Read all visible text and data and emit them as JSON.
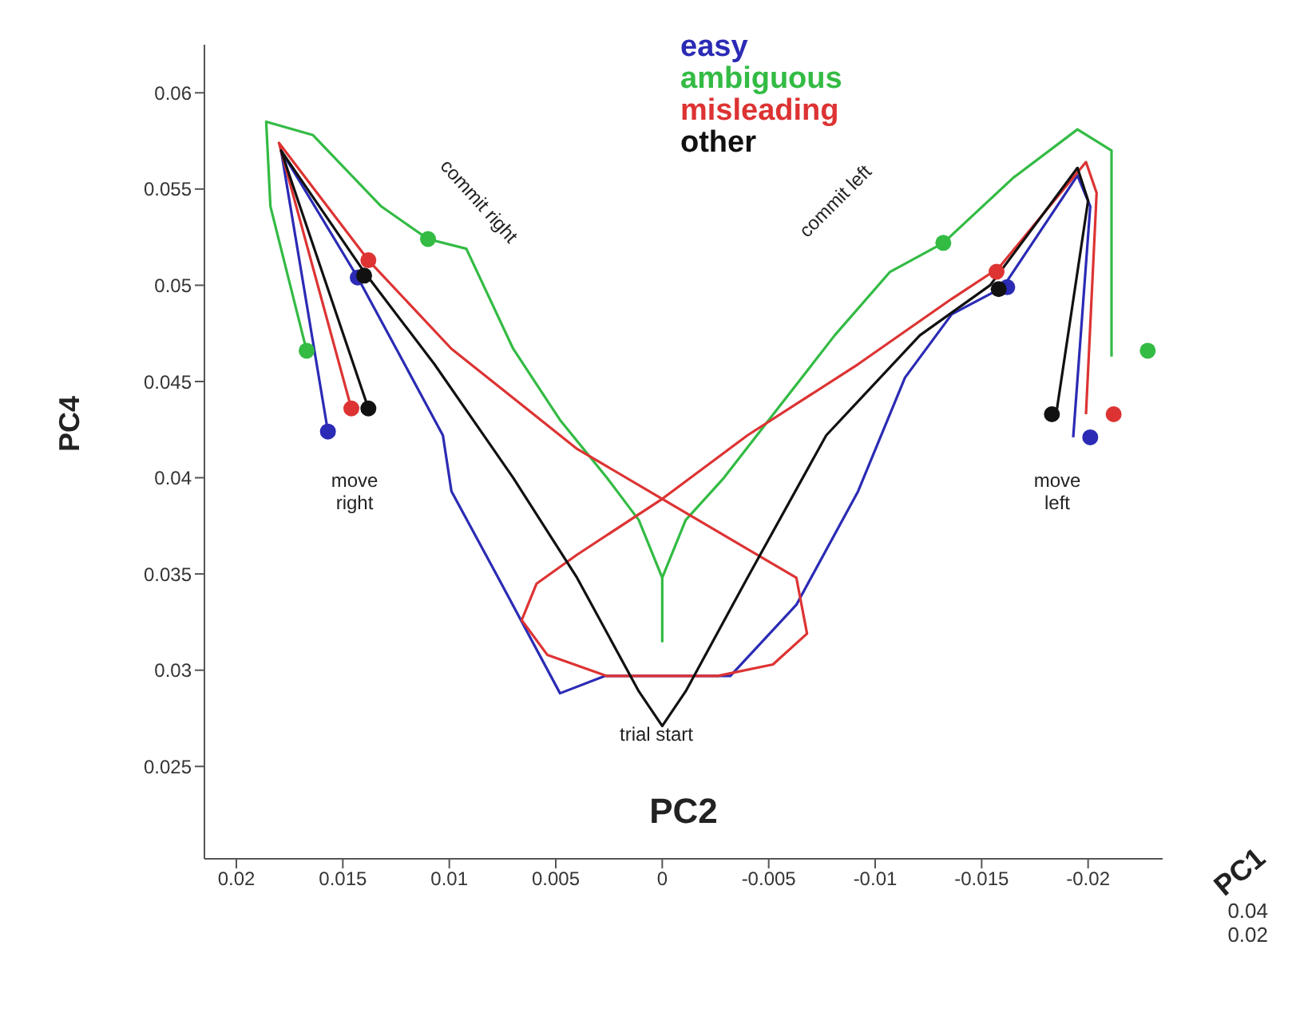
{
  "chart_data": {
    "type": "line",
    "xlabel": "PC2",
    "ylabel": "PC4",
    "xlim": [
      0.0215,
      -0.0235
    ],
    "ylim": [
      0.0202,
      0.0625
    ],
    "xticks": [
      0.02,
      0.015,
      0.01,
      0.005,
      0,
      -0.005,
      -0.01,
      -0.015,
      -0.02
    ],
    "yticks": [
      0.025,
      0.03,
      0.035,
      0.04,
      0.045,
      0.05,
      0.055,
      0.06
    ],
    "grid": false,
    "legend": "top",
    "marker": "none",
    "line_style": "solid",
    "series": [
      {
        "name": "easy",
        "color": "#2b2bb5",
        "x": [
          0.0157,
          0.0179,
          0.0143,
          0.0121,
          0.0103,
          0.0099,
          0.0077,
          0.0048,
          0.0027,
          -0.0032,
          -0.0063,
          -0.0092,
          -0.0114,
          -0.0136,
          -0.016,
          -0.0195,
          -0.0201,
          -0.0193
        ],
        "values": [
          0.0424,
          0.057,
          0.0504,
          0.0459,
          0.0422,
          0.0393,
          0.0348,
          0.0288,
          0.0297,
          0.0297,
          0.0334,
          0.0393,
          0.0452,
          0.0485,
          0.0499,
          0.0557,
          0.0541,
          0.0421
        ]
      },
      {
        "name": "ambiguous",
        "color": "#33bb44",
        "x": [
          0.0167,
          0.0184,
          0.0186,
          0.0164,
          0.0132,
          0.011,
          0.0092,
          0.007,
          0.0048,
          0.0026,
          0.0011,
          0,
          0,
          0,
          -0.0011,
          -0.0029,
          -0.0055,
          -0.0081,
          -0.0107,
          -0.0132,
          -0.0165,
          -0.0195,
          -0.0211,
          -0.0211
        ],
        "values": [
          0.0466,
          0.0541,
          0.0585,
          0.0578,
          0.0541,
          0.0524,
          0.0519,
          0.0467,
          0.043,
          0.04,
          0.0378,
          0.0348,
          0.0315,
          0.0348,
          0.0378,
          0.04,
          0.0437,
          0.0474,
          0.0507,
          0.0522,
          0.0556,
          0.0581,
          0.057,
          0.0463
        ]
      },
      {
        "name": "misleading",
        "color": "#dd3333",
        "x": [
          0.0146,
          0.018,
          0.0138,
          0.0099,
          0.004,
          0,
          -0.004,
          -0.0063,
          -0.0068,
          -0.0052,
          -0.0026,
          0.0026,
          0.0054,
          0.0066,
          0.0059,
          0.004,
          0,
          -0.004,
          -0.0092,
          -0.0136,
          -0.0158,
          -0.0199,
          -0.0204,
          -0.0199
        ],
        "values": [
          0.0436,
          0.0574,
          0.0513,
          0.0467,
          0.0415,
          0.0389,
          0.0363,
          0.0348,
          0.0319,
          0.0303,
          0.0297,
          0.0297,
          0.0308,
          0.0326,
          0.0345,
          0.036,
          0.0389,
          0.0422,
          0.0459,
          0.0493,
          0.0509,
          0.0564,
          0.0548,
          0.0433
        ]
      },
      {
        "name": "other",
        "color": "#111111",
        "x": [
          0.0138,
          0.0179,
          0.014,
          0.0107,
          0.007,
          0.004,
          0.0011,
          0,
          -0.0011,
          -0.004,
          -0.0077,
          -0.0121,
          -0.0154,
          -0.0195,
          -0.02,
          -0.0185
        ],
        "values": [
          0.0436,
          0.057,
          0.0507,
          0.0459,
          0.04,
          0.0348,
          0.0289,
          0.0271,
          0.0289,
          0.0348,
          0.0422,
          0.0474,
          0.05,
          0.0561,
          0.0544,
          0.0433
        ]
      },
      {
        "type": "scatter",
        "marker": "circle",
        "color": "#2b2bb5",
        "x": [
          0.0157,
          0.0143,
          -0.0162,
          -0.0201
        ],
        "values": [
          0.0424,
          0.0504,
          0.0499,
          0.0421
        ]
      },
      {
        "type": "scatter",
        "marker": "circle",
        "color": "#111111",
        "x": [
          0.0138,
          0.014,
          -0.0158,
          -0.0183
        ],
        "values": [
          0.0436,
          0.0505,
          0.0498,
          0.0433
        ]
      },
      {
        "type": "scatter",
        "marker": "circle",
        "color": "#dd3333",
        "x": [
          0.0146,
          0.0138,
          -0.0157,
          -0.0212
        ],
        "values": [
          0.0436,
          0.0513,
          0.0507,
          0.0433
        ]
      },
      {
        "type": "scatter",
        "marker": "circle",
        "color": "#33bb44",
        "x": [
          0.0167,
          0.011,
          -0.0132,
          -0.0228
        ],
        "values": [
          0.0466,
          0.0524,
          0.0522,
          0.0466
        ]
      }
    ],
    "annotations": [
      "commit right",
      "commit left",
      "move right",
      "move left",
      "trial start",
      "PC1",
      "0.04",
      "0.02"
    ]
  }
}
